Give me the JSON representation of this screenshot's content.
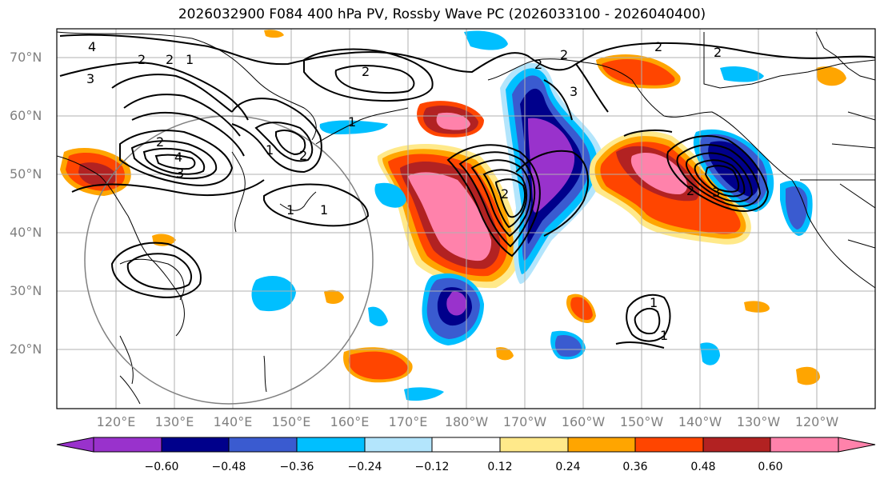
{
  "title": "2026032900 F084 400 hPa PV, Rossby Wave PC (2026033100 - 2026040400)",
  "lat_labels": [
    "70°N",
    "60°N",
    "50°N",
    "40°N",
    "30°N",
    "20°N"
  ],
  "lon_labels": [
    "120°E",
    "130°E",
    "140°E",
    "150°E",
    "160°E",
    "170°E",
    "180°W",
    "170°W",
    "160°W",
    "150°W",
    "140°W",
    "130°W",
    "120°W"
  ],
  "colorbar": {
    "tick_labels": [
      "−0.60",
      "−0.48",
      "−0.36",
      "−0.24",
      "−0.12",
      "0.12",
      "0.24",
      "0.36",
      "0.48",
      "0.60"
    ],
    "colors": [
      "#9932cc",
      "#00008b",
      "#3a5bd0",
      "#00bfff",
      "#b3e5fc",
      "#ffffff",
      "#ffe98a",
      "#ffa500",
      "#ff4500",
      "#b22222",
      "#ff82ab"
    ]
  },
  "contour_labels": [
    "4",
    "2",
    "2",
    "1",
    "3",
    "2",
    "2",
    "2",
    "2",
    "1",
    "2",
    "3",
    "4",
    "3",
    "2",
    "1",
    "1",
    "1",
    "2",
    "2",
    "2",
    "3",
    "1",
    "1"
  ],
  "colors": {
    "coast": "#000000",
    "grid": "#b0b0b0",
    "contour": "#000000",
    "circle": "#808080"
  }
}
